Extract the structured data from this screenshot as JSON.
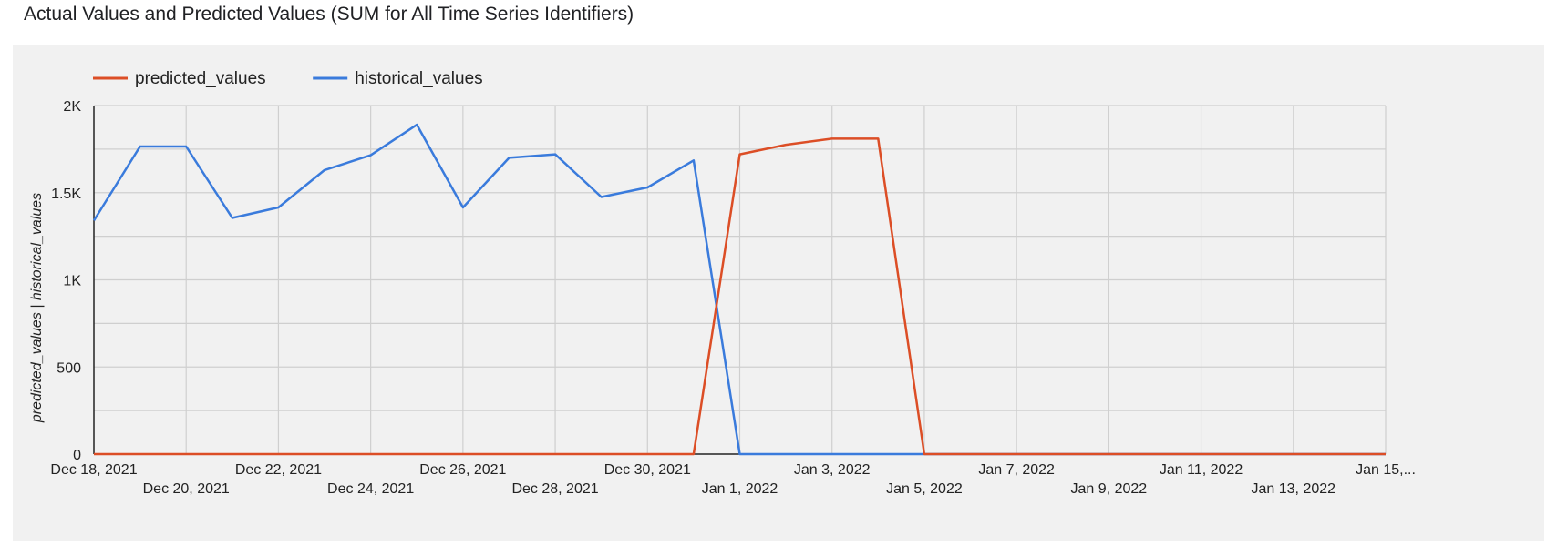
{
  "chart_data": {
    "type": "line",
    "title": "Actual Values and Predicted Values (SUM for All Time Series Identifiers)",
    "ylabel": "predicted_values | historical_values",
    "xlabel": "",
    "ylim": [
      0,
      2000
    ],
    "yticks": [
      {
        "value": 0,
        "label": "0"
      },
      {
        "value": 500,
        "label": "500"
      },
      {
        "value": 1000,
        "label": "1K"
      },
      {
        "value": 1500,
        "label": "1.5K"
      },
      {
        "value": 2000,
        "label": "2K"
      }
    ],
    "x": [
      "2021-12-18",
      "2021-12-19",
      "2021-12-20",
      "2021-12-21",
      "2021-12-22",
      "2021-12-23",
      "2021-12-24",
      "2021-12-25",
      "2021-12-26",
      "2021-12-27",
      "2021-12-28",
      "2021-12-29",
      "2021-12-30",
      "2021-12-31",
      "2022-01-01",
      "2022-01-02",
      "2022-01-03",
      "2022-01-04",
      "2022-01-05",
      "2022-01-06",
      "2022-01-07",
      "2022-01-08",
      "2022-01-09",
      "2022-01-10",
      "2022-01-11",
      "2022-01-12",
      "2022-01-13",
      "2022-01-14",
      "2022-01-15"
    ],
    "xticks": [
      {
        "date": "2021-12-18",
        "label": "Dec 18, 2021",
        "row": 0
      },
      {
        "date": "2021-12-20",
        "label": "Dec 20, 2021",
        "row": 1
      },
      {
        "date": "2021-12-22",
        "label": "Dec 22, 2021",
        "row": 0
      },
      {
        "date": "2021-12-24",
        "label": "Dec 24, 2021",
        "row": 1
      },
      {
        "date": "2021-12-26",
        "label": "Dec 26, 2021",
        "row": 0
      },
      {
        "date": "2021-12-28",
        "label": "Dec 28, 2021",
        "row": 1
      },
      {
        "date": "2021-12-30",
        "label": "Dec 30, 2021",
        "row": 0
      },
      {
        "date": "2022-01-01",
        "label": "Jan 1, 2022",
        "row": 1
      },
      {
        "date": "2022-01-03",
        "label": "Jan 3, 2022",
        "row": 0
      },
      {
        "date": "2022-01-05",
        "label": "Jan 5, 2022",
        "row": 1
      },
      {
        "date": "2022-01-07",
        "label": "Jan 7, 2022",
        "row": 0
      },
      {
        "date": "2022-01-09",
        "label": "Jan 9, 2022",
        "row": 1
      },
      {
        "date": "2022-01-11",
        "label": "Jan 11, 2022",
        "row": 0
      },
      {
        "date": "2022-01-13",
        "label": "Jan 13, 2022",
        "row": 1
      },
      {
        "date": "2022-01-15",
        "label": "Jan 15,...",
        "row": 0
      }
    ],
    "grid": true,
    "legend_position": "top-left",
    "series": [
      {
        "name": "predicted_values",
        "color": "#dc4e26",
        "values": [
          0,
          0,
          0,
          0,
          0,
          0,
          0,
          0,
          0,
          0,
          0,
          0,
          0,
          0,
          1720,
          1775,
          1810,
          1810,
          0,
          0,
          0,
          0,
          0,
          0,
          0,
          0,
          0,
          0,
          0
        ]
      },
      {
        "name": "historical_values",
        "color": "#3a7bdc",
        "values": [
          1340,
          1765,
          1765,
          1355,
          1415,
          1630,
          1715,
          1890,
          1415,
          1700,
          1720,
          1475,
          1530,
          1685,
          0,
          0,
          0,
          0,
          0,
          0,
          0,
          0,
          0,
          0,
          0,
          0,
          0,
          0,
          0
        ]
      }
    ]
  }
}
